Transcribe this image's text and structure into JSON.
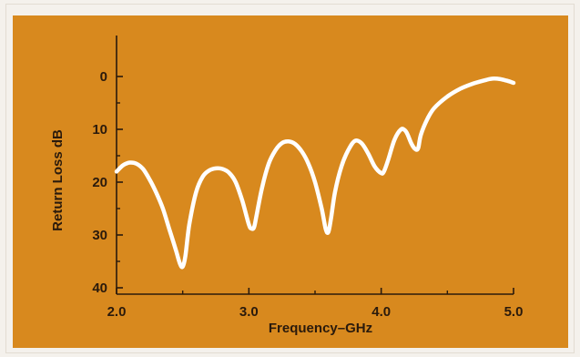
{
  "chart_data": {
    "type": "line",
    "title": "",
    "xlabel": "Frequency–GHz",
    "ylabel": "Return Loss dB",
    "xlim": [
      2.0,
      5.0
    ],
    "ylim": [
      0,
      40
    ],
    "y_inverted": true,
    "grid": false,
    "x_ticks": [
      "2.0",
      "3.0",
      "4.0",
      "5.0"
    ],
    "y_ticks": [
      "0",
      "10",
      "20",
      "30",
      "40"
    ],
    "colors": {
      "background": "#d8891e",
      "line": "#ffffff",
      "axis": "#2a1a0c"
    },
    "series": [
      {
        "x": [
          2.0,
          2.05,
          2.1,
          2.15,
          2.2,
          2.25,
          2.3,
          2.35,
          2.4,
          2.45,
          2.48,
          2.5,
          2.52,
          2.55,
          2.6,
          2.65,
          2.7,
          2.75,
          2.8,
          2.85,
          2.9,
          2.95,
          3.0,
          3.02,
          3.04,
          3.06,
          3.1,
          3.15,
          3.2,
          3.25,
          3.3,
          3.35,
          3.4,
          3.45,
          3.5,
          3.55,
          3.58,
          3.6,
          3.62,
          3.65,
          3.7,
          3.75,
          3.8,
          3.85,
          3.9,
          3.95,
          4.0,
          4.02,
          4.05,
          4.1,
          4.15,
          4.18,
          4.2,
          4.23,
          4.26,
          4.28,
          4.3,
          4.35,
          4.4,
          4.5,
          4.6,
          4.7,
          4.8,
          4.85,
          4.9,
          4.95,
          5.0
        ],
        "y": [
          18,
          16.8,
          16.3,
          16.5,
          17.5,
          19.5,
          22,
          25,
          29,
          33,
          35.5,
          36,
          34,
          28,
          22,
          19,
          17.8,
          17.4,
          17.5,
          18.2,
          20,
          23.5,
          28,
          28.8,
          28.5,
          26,
          21,
          16.5,
          14,
          12.6,
          12.3,
          12.8,
          14.2,
          16.5,
          20,
          25,
          28.8,
          29.5,
          27,
          22,
          17,
          14,
          12.2,
          12.6,
          14.5,
          17,
          18.3,
          18,
          16,
          12,
          10,
          10.2,
          11,
          12.8,
          13.8,
          13.5,
          11,
          8,
          6,
          3.8,
          2.3,
          1.3,
          0.6,
          0.4,
          0.5,
          0.8,
          1.2
        ]
      }
    ]
  }
}
